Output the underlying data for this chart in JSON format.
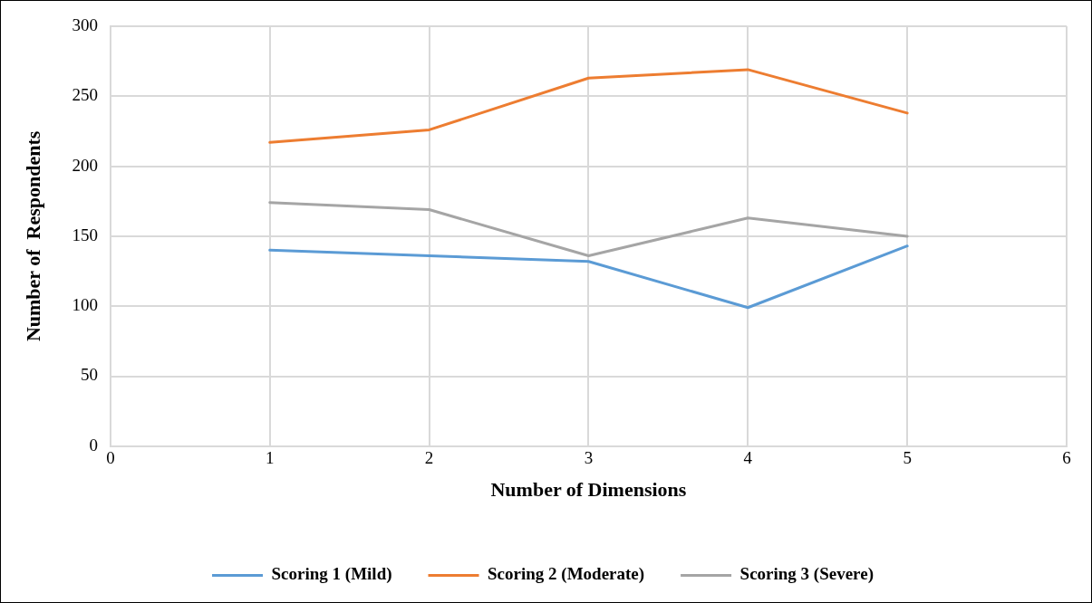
{
  "chart_data": {
    "type": "line",
    "xlabel": "Number of Dimensions",
    "ylabel": "Number of  Respondents",
    "x": [
      1,
      2,
      3,
      4,
      5
    ],
    "series": [
      {
        "name": "Scoring 1 (Mild)",
        "color": "#5b9bd5",
        "values": [
          140,
          136,
          132,
          99,
          143
        ]
      },
      {
        "name": "Scoring 2 (Moderate)",
        "color": "#ed7d31",
        "values": [
          217,
          226,
          263,
          269,
          238
        ]
      },
      {
        "name": "Scoring 3 (Severe)",
        "color": "#a5a5a5",
        "values": [
          174,
          169,
          136,
          163,
          150
        ]
      }
    ],
    "xlim": [
      0,
      6
    ],
    "xticks": [
      0,
      1,
      2,
      3,
      4,
      5,
      6
    ],
    "ylim": [
      0,
      300
    ],
    "yticks": [
      0,
      50,
      100,
      150,
      200,
      250,
      300
    ],
    "grid": true,
    "legend": "bottom",
    "marker": "none",
    "line_style": "solid"
  }
}
